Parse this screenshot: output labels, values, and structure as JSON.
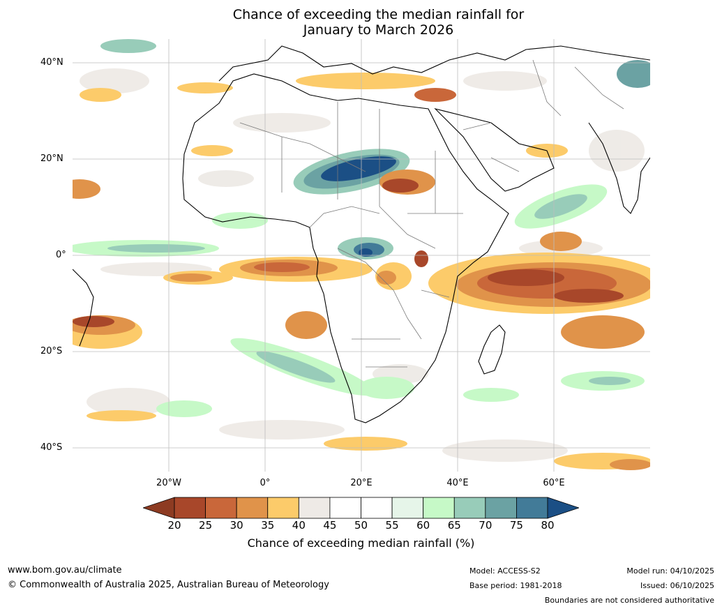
{
  "title": {
    "line1": "Chance of exceeding the median rainfall for",
    "line2": "January to March 2026"
  },
  "axes": {
    "lat_labels": [
      "40°N",
      "20°N",
      "0°",
      "20°S",
      "40°S"
    ],
    "lon_labels": [
      "20°W",
      "0°",
      "20°E",
      "40°E",
      "60°E"
    ],
    "lat_values": [
      40,
      20,
      0,
      -20,
      -40
    ],
    "lon_values": [
      -20,
      0,
      20,
      40,
      60
    ],
    "lon_range": [
      -40,
      80
    ],
    "lat_range": [
      -45,
      45
    ]
  },
  "colorbar": {
    "ticks": [
      "20",
      "25",
      "30",
      "35",
      "40",
      "45",
      "50",
      "55",
      "60",
      "65",
      "70",
      "75",
      "80"
    ],
    "colors": [
      "#a8472a",
      "#c9673a",
      "#e0934a",
      "#fccb6a",
      "#eeeae6",
      "#ffffff",
      "#ffffff",
      "#e6f5e9",
      "#c6f9c7",
      "#98ccb9",
      "#6ba2a3",
      "#427b98"
    ],
    "under_color": "#8d3b22",
    "over_color": "#1b4f85",
    "label": "Chance of exceeding median rainfall (%)"
  },
  "footer": {
    "website": "www.bom.gov.au/climate",
    "copyright": "© Commonwealth of Australia 2025, Australian Bureau of Meteorology",
    "model": "Model: ACCESS-S2",
    "base_period": "Base period: 1981-2018",
    "model_run": "Model run: 04/10/2025",
    "issued": "Issued: 06/10/2025",
    "disclaimer": "Boundaries are not considered authoritative"
  }
}
